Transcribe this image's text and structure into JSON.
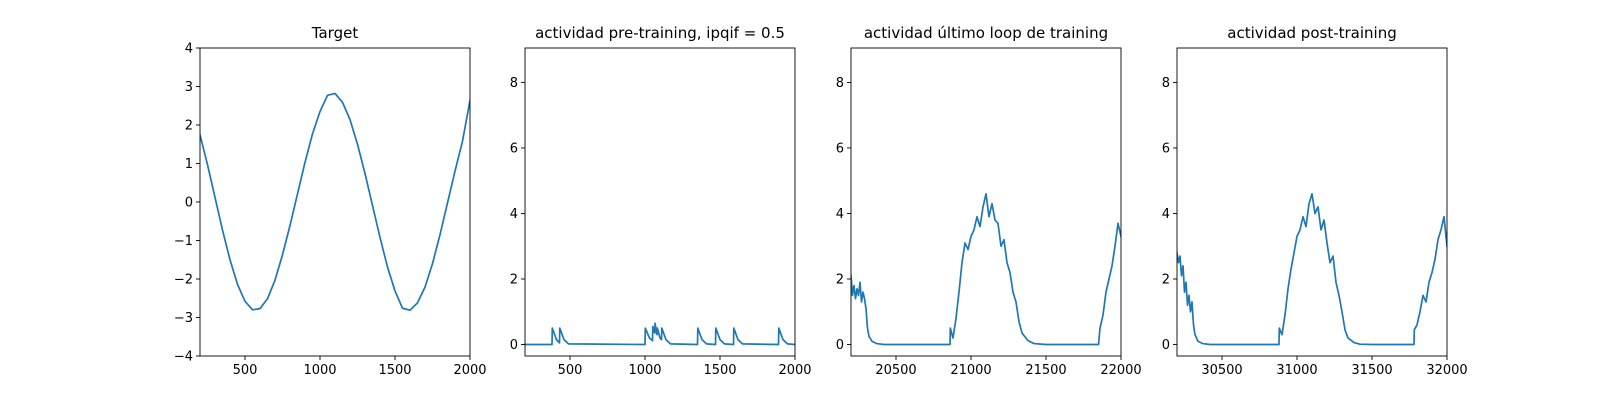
{
  "chart_data": [
    {
      "type": "line",
      "title": "Target",
      "xlim": [
        200,
        2000
      ],
      "ylim": [
        -4,
        4
      ],
      "xticks": [
        500,
        1000,
        1500,
        2000
      ],
      "yticks": [
        -4,
        -3,
        -2,
        -1,
        0,
        1,
        2,
        3,
        4
      ],
      "ytick_labels": [
        "−4",
        "−3",
        "−2",
        "−1",
        "0",
        "1",
        "2",
        "3",
        "4"
      ],
      "series": [
        {
          "x": [
            200,
            250,
            300,
            350,
            400,
            450,
            500,
            550,
            600,
            650,
            700,
            750,
            800,
            850,
            900,
            950,
            1000,
            1050,
            1100,
            1150,
            1200,
            1250,
            1300,
            1350,
            1400,
            1450,
            1500,
            1550,
            1600,
            1650,
            1700,
            1750,
            1800,
            1850,
            1900,
            1950,
            2000
          ],
          "values": [
            1.74,
            0.97,
            0.12,
            -0.73,
            -1.5,
            -2.14,
            -2.58,
            -2.8,
            -2.77,
            -2.51,
            -2.03,
            -1.37,
            -0.61,
            0.21,
            1.03,
            1.77,
            2.35,
            2.77,
            2.82,
            2.59,
            2.14,
            1.5,
            0.74,
            -0.09,
            -0.92,
            -1.69,
            -2.31,
            -2.76,
            -2.81,
            -2.62,
            -2.21,
            -1.6,
            -0.85,
            -0.02,
            0.8,
            1.58,
            2.64
          ]
        }
      ]
    },
    {
      "type": "line",
      "title": "actividad pre-training, ipqif = 0.5",
      "xlim": [
        200,
        2000
      ],
      "ylim": [
        -0.35,
        9.05
      ],
      "xticks": [
        500,
        1000,
        1500,
        2000
      ],
      "yticks": [
        0,
        2,
        4,
        6,
        8
      ],
      "ytick_labels": [
        "0",
        "2",
        "4",
        "6",
        "8"
      ],
      "series": [
        {
          "x": [
            200,
            380,
            382,
            410,
            430,
            432,
            460,
            490,
            1000,
            1002,
            1030,
            1050,
            1052,
            1065,
            1067,
            1080,
            1082,
            1100,
            1110,
            1112,
            1140,
            1170,
            1350,
            1352,
            1380,
            1410,
            1470,
            1472,
            1500,
            1530,
            1590,
            1592,
            1620,
            1650,
            1890,
            1892,
            1920,
            1950,
            2000
          ],
          "values": [
            0,
            0,
            0.5,
            0.15,
            0.05,
            0.5,
            0.15,
            0.02,
            0,
            0.5,
            0.2,
            0.12,
            0.55,
            0.35,
            0.65,
            0.3,
            0.5,
            0.2,
            0.15,
            0.5,
            0.15,
            0.02,
            0,
            0.5,
            0.15,
            0.02,
            0,
            0.5,
            0.15,
            0.02,
            0,
            0.5,
            0.15,
            0.02,
            0,
            0.5,
            0.15,
            0.02,
            0
          ]
        }
      ]
    },
    {
      "type": "line",
      "title": "actividad último loop de training",
      "xlim": [
        20200,
        22000
      ],
      "ylim": [
        -0.35,
        9.05
      ],
      "xticks": [
        20500,
        21000,
        21500,
        22000
      ],
      "yticks": [
        0,
        2,
        4,
        6,
        8
      ],
      "ytick_labels": [
        "0",
        "2",
        "4",
        "6",
        "8"
      ],
      "series": [
        {
          "x": [
            20200,
            20210,
            20220,
            20230,
            20240,
            20250,
            20260,
            20270,
            20280,
            20290,
            20300,
            20310,
            20320,
            20340,
            20370,
            20420,
            20500,
            20600,
            20700,
            20800,
            20860,
            20862,
            20880,
            20900,
            20920,
            20940,
            20960,
            20980,
            21000,
            21020,
            21040,
            21060,
            21080,
            21100,
            21120,
            21140,
            21160,
            21180,
            21200,
            21220,
            21240,
            21260,
            21280,
            21300,
            21320,
            21340,
            21380,
            21420,
            21500,
            21600,
            21700,
            21800,
            21850,
            21860,
            21880,
            21900,
            21920,
            21940,
            21960,
            21980,
            22000
          ],
          "values": [
            2.1,
            1.5,
            1.8,
            1.4,
            1.7,
            1.5,
            1.9,
            1.3,
            1.6,
            1.4,
            1.1,
            0.5,
            0.25,
            0.1,
            0.03,
            0.0,
            0.0,
            0.0,
            0.0,
            0.0,
            0.0,
            0.5,
            0.2,
            0.8,
            1.6,
            2.5,
            3.1,
            2.9,
            3.3,
            3.5,
            3.9,
            3.6,
            4.2,
            4.6,
            3.9,
            4.3,
            3.8,
            3.7,
            3.0,
            3.2,
            2.5,
            2.2,
            1.6,
            1.3,
            0.7,
            0.35,
            0.12,
            0.03,
            0.0,
            0.0,
            0.0,
            0.0,
            0.0,
            0.5,
            0.9,
            1.6,
            2.0,
            2.4,
            3.0,
            3.7,
            3.3
          ]
        }
      ]
    },
    {
      "type": "line",
      "title": "actividad post-training",
      "xlim": [
        30200,
        32000
      ],
      "ylim": [
        -0.35,
        9.05
      ],
      "xticks": [
        30500,
        31000,
        31500,
        32000
      ],
      "yticks": [
        0,
        2,
        4,
        6,
        8
      ],
      "ytick_labels": [
        "0",
        "2",
        "4",
        "6",
        "8"
      ],
      "series": [
        {
          "x": [
            30200,
            30210,
            30220,
            30230,
            30240,
            30250,
            30260,
            30270,
            30280,
            30290,
            30300,
            30310,
            30320,
            30340,
            30370,
            30420,
            30500,
            30600,
            30700,
            30800,
            30880,
            30882,
            30900,
            30920,
            30940,
            30960,
            30980,
            31000,
            31020,
            31040,
            31060,
            31080,
            31100,
            31120,
            31140,
            31160,
            31180,
            31200,
            31220,
            31240,
            31260,
            31280,
            31300,
            31320,
            31340,
            31380,
            31420,
            31500,
            31600,
            31700,
            31780,
            31782,
            31800,
            31820,
            31840,
            31860,
            31880,
            31900,
            31920,
            31940,
            31960,
            31980,
            32000
          ],
          "values": [
            2.8,
            2.5,
            2.7,
            2.1,
            2.4,
            1.6,
            1.9,
            1.2,
            1.5,
            1.0,
            1.3,
            0.6,
            0.3,
            0.1,
            0.03,
            0.0,
            0.0,
            0.0,
            0.0,
            0.0,
            0.0,
            0.5,
            0.3,
            0.9,
            1.7,
            2.3,
            2.8,
            3.3,
            3.5,
            3.9,
            3.6,
            4.3,
            4.6,
            4.0,
            4.2,
            3.5,
            3.8,
            3.1,
            2.5,
            2.7,
            1.9,
            1.5,
            1.0,
            0.45,
            0.2,
            0.06,
            0.01,
            0.0,
            0.0,
            0.0,
            0.0,
            0.45,
            0.6,
            1.0,
            1.5,
            1.3,
            1.9,
            2.2,
            2.6,
            3.2,
            3.5,
            3.9,
            3.0
          ]
        }
      ]
    }
  ]
}
